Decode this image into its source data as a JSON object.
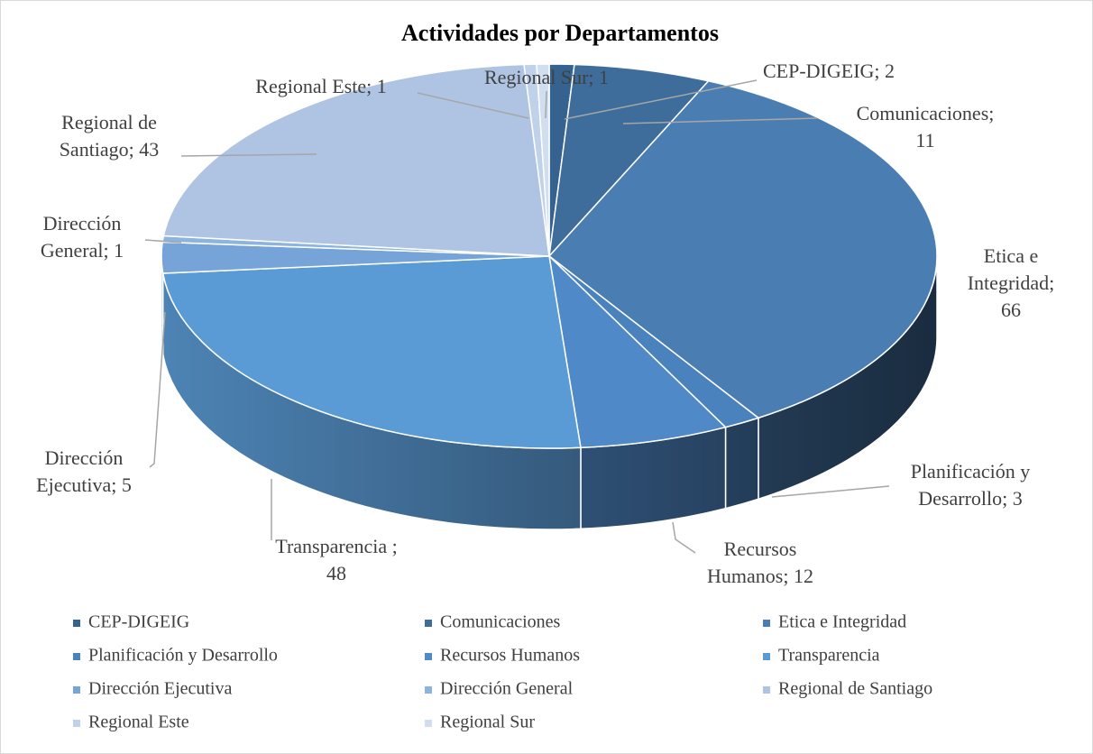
{
  "chart_data": {
    "type": "pie3d",
    "title": "Actividades por Departamentos",
    "categories": [
      "CEP-DIGEIG",
      "Comunicaciones",
      "Etica e Integridad",
      "Planificación y Desarrollo",
      "Recursos Humanos",
      "Transparencia",
      "Dirección Ejecutiva",
      "Dirección General",
      "Regional de Santiago",
      "Regional Este",
      "Regional Sur"
    ],
    "values": [
      2,
      11,
      66,
      3,
      12,
      48,
      5,
      1,
      43,
      1,
      1
    ],
    "value_labels": [
      "CEP-DIGEIG; 2",
      "Comunicaciones;\n11",
      "Etica e\nIntegridad; 66",
      "Planificación y\nDesarrollo; 3",
      "Recursos\nHumanos; 12",
      "Transparencia ;\n48",
      "Dirección\nEjecutiva; 5",
      "Dirección\nGeneral; 1",
      "Regional de\nSantiago; 43",
      "Regional Este; 1",
      "Regional Sur; 1"
    ],
    "colors": [
      "#35628f",
      "#3e6d9c",
      "#4a7eb3",
      "#4a82bd",
      "#5089c8",
      "#5b9bd5",
      "#76a4d8",
      "#8db3df",
      "#aec4e2",
      "#c0d2ea",
      "#d0def0"
    ],
    "legend": "bottom"
  }
}
